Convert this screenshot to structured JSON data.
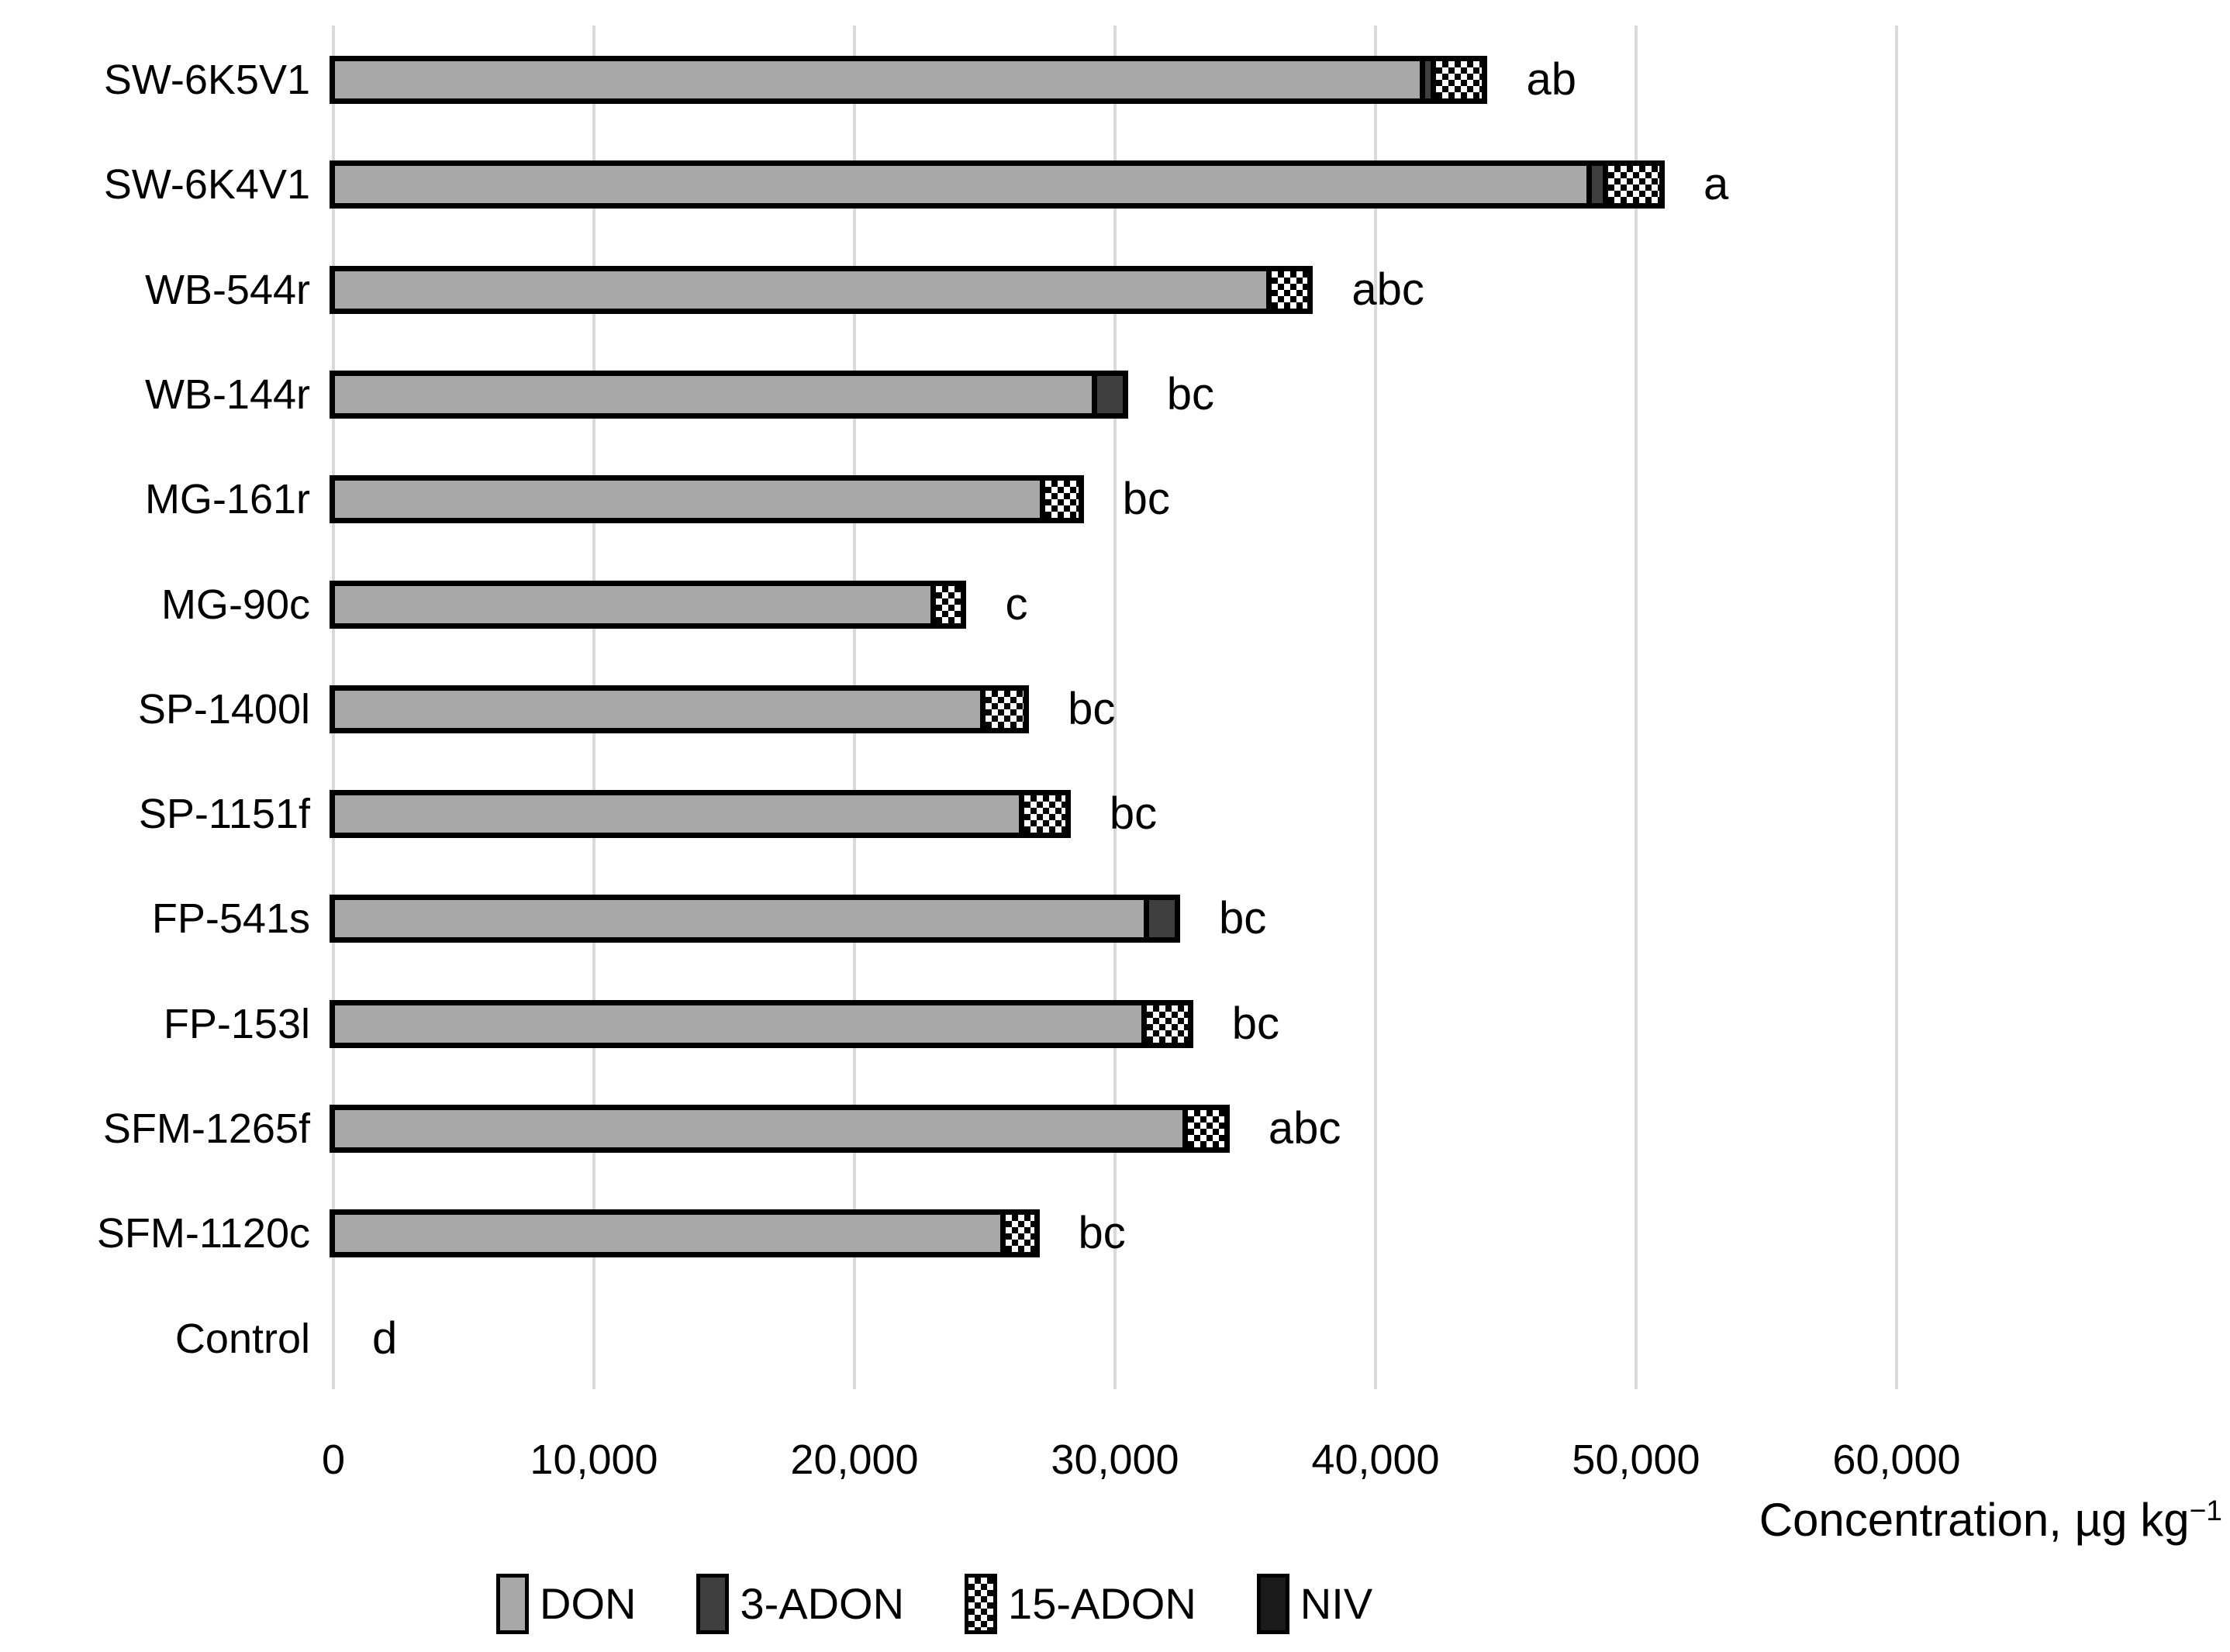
{
  "chart_data": {
    "type": "bar",
    "orientation": "horizontal",
    "stacked": true,
    "title": "",
    "xlabel": "Concentration, µg kg",
    "xlabel_sup": "−1",
    "ylabel": "",
    "xlim": [
      0,
      70000
    ],
    "grid": true,
    "legend_position": "bottom",
    "categories": [
      "SW-6K5V1",
      "SW-6K4V1",
      "WB-544r",
      "WB-144r",
      "MG-161r",
      "MG-90c",
      "SP-1400l",
      "SP-1151f",
      "FP-541s",
      "FP-153l",
      "SFM-1265f",
      "SFM-1120c",
      "Control"
    ],
    "series": [
      {
        "name": "DON",
        "color": "#a8a8a8",
        "pattern": "solid",
        "values": [
          42300,
          48700,
          36200,
          29500,
          27500,
          23300,
          25200,
          26700,
          31500,
          31400,
          33000,
          26000,
          0
        ]
      },
      {
        "name": "3-ADON",
        "color": "#3f3f3f",
        "pattern": "solid",
        "values": [
          200,
          400,
          0,
          1000,
          0,
          0,
          0,
          0,
          1000,
          0,
          0,
          0,
          0
        ]
      },
      {
        "name": "15-ADON",
        "color": "#ffffff",
        "pattern": "checker",
        "values": [
          1800,
          2000,
          1400,
          0,
          1300,
          1000,
          1500,
          1600,
          0,
          1600,
          1400,
          1100,
          0
        ]
      },
      {
        "name": "NIV",
        "color": "#1a1a1a",
        "pattern": "solid",
        "values": [
          0,
          0,
          0,
          0,
          0,
          0,
          0,
          0,
          0,
          0,
          0,
          0,
          0
        ]
      }
    ],
    "significance_letters": [
      "ab",
      "a",
      "abc",
      "bc",
      "bc",
      "c",
      "bc",
      "bc",
      "bc",
      "bc",
      "abc",
      "bc",
      "d"
    ],
    "xticks": [
      "0",
      "10,000",
      "20,000",
      "30,000",
      "40,000",
      "50,000",
      "60,000"
    ],
    "gridline_color": "#d9d9d9",
    "bar_border_color": "#000000",
    "text_color": "#000000"
  }
}
